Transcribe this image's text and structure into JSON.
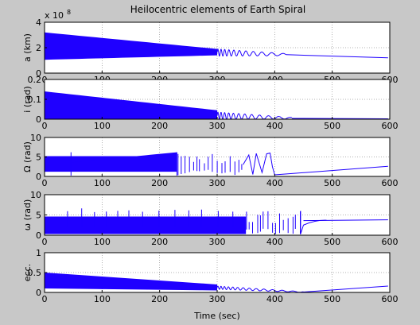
{
  "figure": {
    "title": "Heilocentric elements of Earth Spiral",
    "xlabel": "Time (sec)"
  },
  "colors": {
    "background": "#c8c8c8",
    "axes": "#ffffff",
    "series": "#1f00ff",
    "grid": "#000000"
  },
  "chart_data": [
    {
      "type": "line",
      "ylabel": "a (km)",
      "exponent_label": "x 10",
      "exponent_power": "8",
      "xlim": [
        0,
        600
      ],
      "ylim": [
        0,
        4
      ],
      "xticks": [
        0,
        100,
        200,
        300,
        400,
        500,
        600
      ],
      "yticks": [
        0,
        2,
        4
      ],
      "grid": true,
      "dense_band": {
        "x": [
          0,
          300
        ],
        "lower": [
          1.05,
          1.4
        ],
        "upper": [
          3.2,
          1.9
        ]
      },
      "oscillation": {
        "x": [
          300,
          420
        ],
        "center": [
          1.62,
          1.45
        ],
        "amp": [
          0.28,
          0.08
        ],
        "period": [
          5,
          22
        ]
      },
      "tail": {
        "x": [
          420,
          597
        ],
        "y": [
          1.45,
          1.2
        ]
      }
    },
    {
      "type": "line",
      "ylabel": "i (rad)",
      "xlim": [
        0,
        600
      ],
      "ylim": [
        0,
        0.2
      ],
      "xticks": [
        0,
        100,
        200,
        300,
        400,
        500,
        600
      ],
      "yticks": [
        0,
        0.1,
        0.2
      ],
      "grid": true,
      "dense_band": {
        "x": [
          0,
          300
        ],
        "lower": [
          0,
          0
        ],
        "upper": [
          0.14,
          0.045
        ]
      },
      "oscillation": {
        "x": [
          300,
          430
        ],
        "center": [
          0.018,
          0.005
        ],
        "amp": [
          0.018,
          0.004
        ],
        "period": [
          5,
          22
        ]
      },
      "tail": {
        "x": [
          430,
          597
        ],
        "y": [
          0.004,
          0.002
        ]
      }
    },
    {
      "type": "line",
      "ylabel": "Ω (rad)",
      "xlim": [
        0,
        600
      ],
      "ylim": [
        0,
        10
      ],
      "xticks": [
        0,
        100,
        200,
        300,
        400,
        500,
        600
      ],
      "yticks": [
        0,
        5,
        10
      ],
      "grid": true,
      "dense_band": {
        "x": [
          0,
          230
        ],
        "lower": [
          1.2,
          1.2
        ],
        "upper": [
          5.2,
          5.2
        ]
      },
      "tail": {
        "x": [
          400,
          597
        ],
        "y": [
          0.4,
          2.6
        ]
      }
    },
    {
      "type": "line",
      "ylabel": "ω (rad)",
      "xlim": [
        0,
        600
      ],
      "ylim": [
        0,
        10
      ],
      "xticks": [
        0,
        100,
        200,
        300,
        400,
        500,
        600
      ],
      "yticks": [
        0,
        5,
        10
      ],
      "grid": true,
      "dense_band": {
        "x": [
          0,
          350
        ],
        "lower": [
          0.3,
          0.3
        ],
        "upper": [
          4.6,
          4.6
        ]
      },
      "tail": {
        "x": [
          450,
          597
        ],
        "y": [
          3.6,
          3.8
        ]
      }
    },
    {
      "type": "line",
      "ylabel": "ecc.",
      "xlim": [
        0,
        600
      ],
      "ylim": [
        0,
        1
      ],
      "xticks": [
        0,
        100,
        200,
        300,
        400,
        500,
        600
      ],
      "yticks": [
        0,
        0.5,
        1
      ],
      "grid": true,
      "dense_band": {
        "x": [
          0,
          300
        ],
        "lower": [
          0.1,
          0.05
        ],
        "upper": [
          0.5,
          0.2
        ]
      },
      "oscillation": {
        "x": [
          300,
          450
        ],
        "center": [
          0.12,
          0.01
        ],
        "amp": [
          0.04,
          0.01
        ],
        "period": [
          5,
          22
        ]
      },
      "tail": {
        "x": [
          450,
          597
        ],
        "y": [
          0.01,
          0.16
        ]
      }
    }
  ]
}
